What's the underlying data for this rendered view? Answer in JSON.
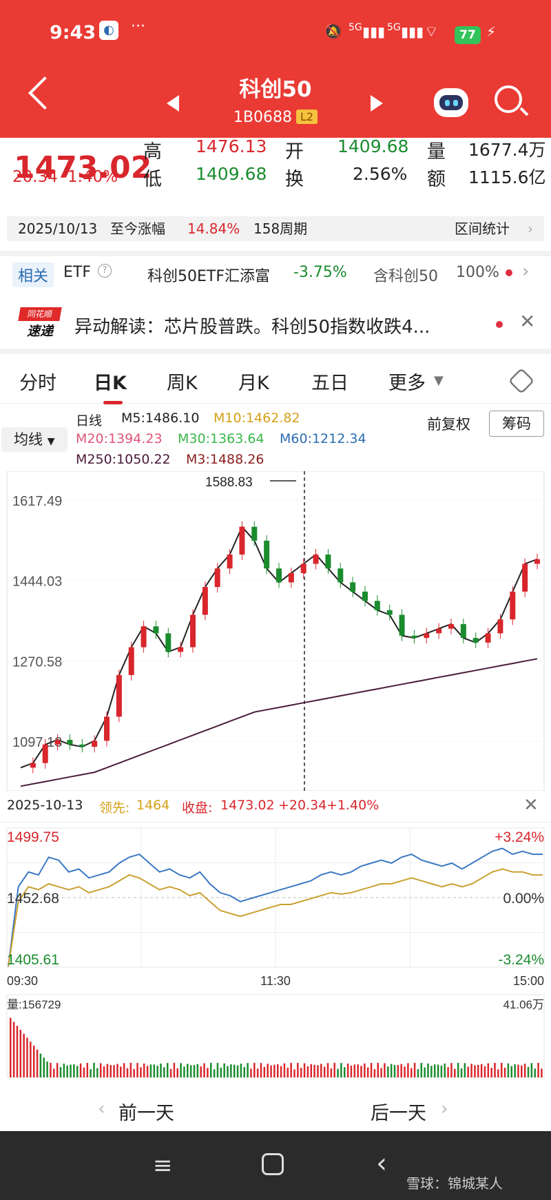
{
  "status": {
    "time": "9:43",
    "battery": "77",
    "signal1": "5G",
    "signal2": "5G"
  },
  "header": {
    "title": "科创50",
    "code": "1B0688",
    "level": "L2"
  },
  "quote": {
    "price": "1473.02",
    "change": "20.34",
    "change_pct": "1.40%",
    "high_label": "高",
    "high": "1476.13",
    "open_label": "开",
    "open": "1409.68",
    "vol_label": "量",
    "vol": "1677.4万",
    "low_label": "低",
    "low": "1409.68",
    "turn_label": "换",
    "turnover": "2.56%",
    "amt_label": "额",
    "amount": "1115.6亿"
  },
  "period": {
    "date": "2025/10/13",
    "label": "至今涨幅",
    "pct": "14.84%",
    "weeks": "158周期",
    "stats_btn": "区间统计"
  },
  "etf": {
    "tag": "相关",
    "name": "ETF",
    "fund": "科创50ETF汇添富",
    "fund_pct": "-3.75%",
    "contain": "含科创50",
    "contain_pct": "100%"
  },
  "news": {
    "brand_top": "同花顺",
    "brand_bottom": "速递",
    "text": "异动解读：芯片股普跌。科创50指数收跌4..."
  },
  "tabs": [
    "分时",
    "日K",
    "周K",
    "月K",
    "五日",
    "更多"
  ],
  "ma": {
    "line_type": "日线",
    "m5": "M5:1486.10",
    "m10": "M10:1462.82",
    "m20": "M20:1394.23",
    "m30": "M30:1363.64",
    "m60": "M60:1212.34",
    "m250": "M250:1050.22",
    "m3": "M3:1488.26",
    "fq": "前复权",
    "chou": "筹码",
    "jun": "均线"
  },
  "colors": {
    "up": "#d9262c",
    "down": "#1a8c2e",
    "m5": "#222222",
    "m10": "#d4a017",
    "m20": "#e0557a",
    "m30": "#3ab54a",
    "m60": "#2a6cb0",
    "m250": "#4a1a3a",
    "m3": "#8b2020"
  },
  "chart_data": [
    {
      "type": "line",
      "title": "",
      "ylabels": [
        "1617.49",
        "1444.03",
        "1270.58",
        "1097.13"
      ],
      "annotation": "1588.83",
      "series": [
        {
          "name": "M5",
          "values": [
            1040,
            1050,
            1090,
            1100,
            1090,
            1085,
            1098,
            1150,
            1240,
            1300,
            1345,
            1330,
            1290,
            1300,
            1370,
            1430,
            1470,
            1500,
            1560,
            1530,
            1470,
            1440,
            1460,
            1480,
            1500,
            1470,
            1440,
            1420,
            1400,
            1380,
            1370,
            1325,
            1320,
            1330,
            1340,
            1350,
            1320,
            1310,
            1330,
            1360,
            1420,
            1480,
            1490
          ]
        },
        {
          "name": "M250",
          "values": [
            1000,
            1005,
            1010,
            1015,
            1020,
            1025,
            1030,
            1040,
            1050,
            1060,
            1070,
            1080,
            1090,
            1100,
            1110,
            1120,
            1130,
            1140,
            1150,
            1160,
            1165,
            1170,
            1175,
            1180,
            1185,
            1190,
            1195,
            1200,
            1205,
            1210,
            1215,
            1220,
            1225,
            1230,
            1235,
            1240,
            1245,
            1250,
            1255,
            1260,
            1265,
            1270,
            1275
          ]
        }
      ]
    },
    {
      "type": "line",
      "title": "",
      "date": "2025-10-13",
      "lead_label": "领先:",
      "lead_value": "1464",
      "close_label": "收盘:",
      "close_value": "1473.02",
      "close_change": "+20.34",
      "close_pct": "+1.40%",
      "ylim_labels": [
        "1499.75",
        "1452.68",
        "1405.61"
      ],
      "pct_labels": [
        "+3.24%",
        "0.00%",
        "-3.24%"
      ],
      "x_labels": [
        "09:30",
        "11:30",
        "15:00"
      ],
      "volume_label": "量:156729",
      "volume_max": "41.06万",
      "series": [
        {
          "name": "",
          "values": [
            1406,
            1460,
            1470,
            1468,
            1480,
            1478,
            1470,
            1472,
            1466,
            1468,
            1470,
            1476,
            1480,
            1482,
            1476,
            1470,
            1472,
            1468,
            1466,
            1470,
            1462,
            1456,
            1454,
            1450,
            1452,
            1454,
            1456,
            1458,
            1460,
            1462,
            1464,
            1468,
            1470,
            1468,
            1470,
            1474,
            1476,
            1478,
            1476,
            1480,
            1482,
            1478,
            1476,
            1474,
            1476,
            1472,
            1476,
            1480,
            1484,
            1486,
            1482,
            1484,
            1482,
            1482
          ]
        },
        {
          "name": "",
          "values": [
            1406,
            1450,
            1460,
            1458,
            1462,
            1460,
            1458,
            1460,
            1456,
            1458,
            1460,
            1464,
            1468,
            1466,
            1462,
            1458,
            1460,
            1458,
            1454,
            1456,
            1450,
            1444,
            1442,
            1440,
            1442,
            1444,
            1446,
            1448,
            1448,
            1450,
            1452,
            1454,
            1456,
            1455,
            1456,
            1458,
            1460,
            1462,
            1462,
            1464,
            1466,
            1464,
            1462,
            1460,
            1462,
            1460,
            1462,
            1466,
            1470,
            1472,
            1470,
            1470,
            1468,
            1468
          ]
        }
      ]
    }
  ],
  "intraday_header": {
    "date": "2025-10-13",
    "lead_label": "领先:",
    "lead_value": "1464",
    "close_label": "收盘:",
    "close_value": "1473.02",
    "close_change": "+20.34",
    "close_pct": "+1.40%"
  },
  "day_nav": {
    "prev": "前一天",
    "next": "后一天"
  },
  "watermark": "雪球：锦城某人"
}
